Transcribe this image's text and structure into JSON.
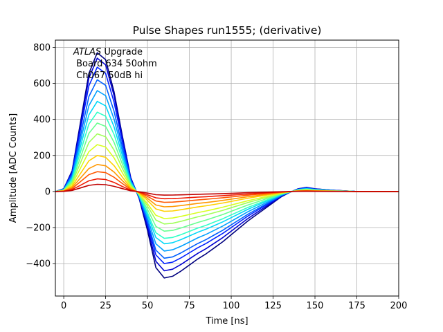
{
  "chart_data": {
    "type": "line",
    "title": "Pulse Shapes run1555; (derivative)",
    "xlabel": "Time [ns]",
    "ylabel": "Amplitude [ADC Counts]",
    "xlim": [
      -5,
      200
    ],
    "ylim": [
      -580,
      840
    ],
    "xticks": [
      0,
      25,
      50,
      75,
      100,
      125,
      150,
      175,
      200
    ],
    "yticks": [
      -400,
      -200,
      0,
      200,
      400,
      600,
      800
    ],
    "xtick_labels": [
      "0",
      "25",
      "50",
      "75",
      "100",
      "125",
      "150",
      "175",
      "200"
    ],
    "ytick_labels": [
      "−400",
      "−200",
      "0",
      "200",
      "400",
      "600",
      "800"
    ],
    "grid": true,
    "annotation": {
      "line1_italic": "ATLAS",
      "line1_rest": " Upgrade",
      "line2": " Board 634 50ohm",
      "line3": " Ch067 50dB hi"
    },
    "series_shape": {
      "x": [
        -5,
        0,
        5,
        10,
        15,
        20,
        25,
        30,
        35,
        40,
        45,
        50,
        55,
        60,
        65,
        70,
        75,
        80,
        85,
        90,
        95,
        100,
        105,
        110,
        115,
        120,
        125,
        130,
        135,
        140,
        145,
        150,
        160,
        175,
        200
      ],
      "y": [
        0,
        0.02,
        0.15,
        0.5,
        0.85,
        1.0,
        0.95,
        0.72,
        0.4,
        0.1,
        -0.08,
        -0.45,
        -0.88,
        -1.0,
        -0.98,
        -0.92,
        -0.85,
        -0.78,
        -0.72,
        -0.65,
        -0.58,
        -0.5,
        -0.42,
        -0.34,
        -0.27,
        -0.2,
        -0.13,
        -0.06,
        -0.01,
        0.02,
        0.03,
        0.02,
        0.01,
        0.0,
        0.0
      ]
    },
    "series": [
      {
        "color": "#00007f",
        "peak": 770,
        "trough": -480
      },
      {
        "color": "#0000d0",
        "peak": 740,
        "trough": -440
      },
      {
        "color": "#0020ff",
        "peak": 690,
        "trough": -400
      },
      {
        "color": "#0060ff",
        "peak": 620,
        "trough": -370
      },
      {
        "color": "#00a0ff",
        "peak": 560,
        "trough": -330
      },
      {
        "color": "#00d8f8",
        "peak": 500,
        "trough": -290
      },
      {
        "color": "#30ffc8",
        "peak": 440,
        "trough": -260
      },
      {
        "color": "#68ff90",
        "peak": 380,
        "trough": -220
      },
      {
        "color": "#a0ff58",
        "peak": 320,
        "trough": -180
      },
      {
        "color": "#d8ff20",
        "peak": 260,
        "trough": -150
      },
      {
        "color": "#ffd000",
        "peak": 200,
        "trough": -110
      },
      {
        "color": "#ff9800",
        "peak": 150,
        "trough": -85
      },
      {
        "color": "#ff5800",
        "peak": 110,
        "trough": -60
      },
      {
        "color": "#f01800",
        "peak": 70,
        "trough": -40
      },
      {
        "color": "#c00000",
        "peak": 40,
        "trough": -20
      }
    ]
  }
}
